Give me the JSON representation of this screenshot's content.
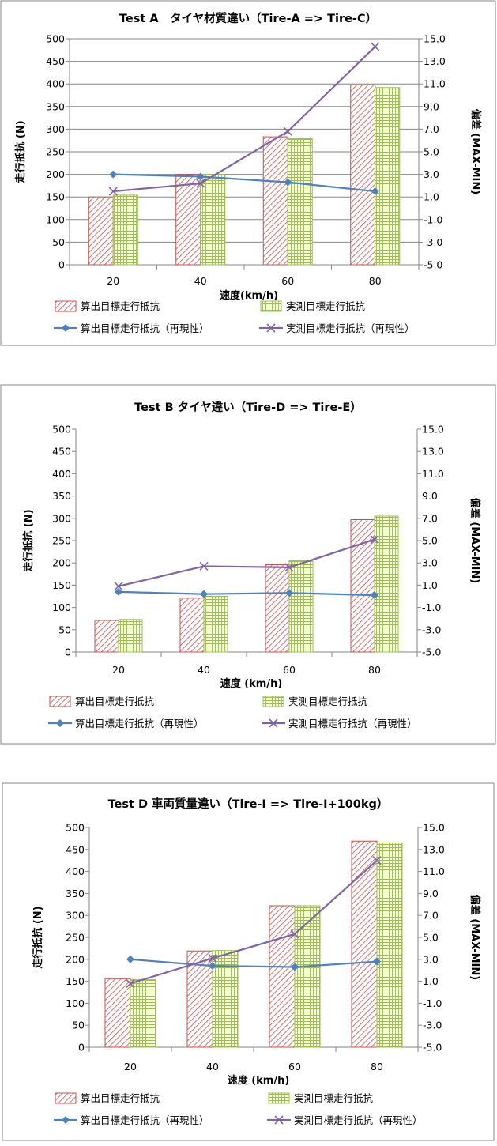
{
  "colors": {
    "bar1_stroke": "#c0504d",
    "bar1_hatch": "#c0504d",
    "bar2_stroke": "#9bbb59",
    "bar2_grid": "#9bbb59",
    "line1": "#4f81bd",
    "line2": "#8064a2",
    "gridline": "#868686"
  },
  "chart_data": [
    {
      "type": "bar",
      "title": "Test A　タイヤ材質違い（Tire-A => Tire-C）",
      "xlabel": "速度(km/h)",
      "ylabel": "走行抵抗 (N)",
      "y2label": "偏差 (MAX-MIN)",
      "categories": [
        "20",
        "40",
        "60",
        "80"
      ],
      "ylim": [
        0,
        500
      ],
      "y2lim": [
        -5.0,
        15.0
      ],
      "yticks": [
        "0",
        "50",
        "100",
        "150",
        "200",
        "250",
        "300",
        "350",
        "400",
        "450",
        "500"
      ],
      "y2ticks": [
        "-5.0",
        "-3.0",
        "-1.0",
        "1.0",
        "3.0",
        "5.0",
        "7.0",
        "9.0",
        "11.0",
        "13.0",
        "15.0"
      ],
      "grid": true,
      "legend_position": "bottom",
      "series": [
        {
          "name": "算出目標走行抵抗",
          "type": "bar",
          "axis": "left",
          "values": [
            150,
            200,
            283,
            398
          ]
        },
        {
          "name": "実測目標走行抵抗",
          "type": "bar",
          "axis": "left",
          "values": [
            154,
            200,
            279,
            392
          ]
        },
        {
          "name": "算出目標走行抵抗（再現性）",
          "type": "line",
          "axis": "right",
          "marker": "diamond",
          "values": [
            3.0,
            2.8,
            2.3,
            1.5
          ]
        },
        {
          "name": "実測目標走行抵抗（再現性）",
          "type": "line",
          "axis": "right",
          "marker": "x",
          "values": [
            1.5,
            2.2,
            6.8,
            14.3
          ]
        }
      ]
    },
    {
      "type": "bar",
      "title": "Test B タイヤ違い（Tire-D => Tire-E）",
      "xlabel": "速度 (km/h)",
      "ylabel": "走行抵抗 (N)",
      "y2label": "偏差 (MAX-MIN)",
      "categories": [
        "20",
        "40",
        "60",
        "80"
      ],
      "ylim": [
        0,
        500
      ],
      "y2lim": [
        -5.0,
        15.0
      ],
      "yticks": [
        "0",
        "50",
        "100",
        "150",
        "200",
        "250",
        "300",
        "350",
        "400",
        "450",
        "500"
      ],
      "y2ticks": [
        "-5.0",
        "-3.0",
        "-1.0",
        "1.0",
        "3.0",
        "5.0",
        "7.0",
        "9.0",
        "11.0",
        "13.0",
        "15.0"
      ],
      "grid": false,
      "legend_position": "bottom",
      "series": [
        {
          "name": "算出目標走行抵抗",
          "type": "bar",
          "axis": "left",
          "values": [
            71,
            121,
            196,
            297
          ]
        },
        {
          "name": "実測目標走行抵抗",
          "type": "bar",
          "axis": "left",
          "values": [
            73,
            125,
            205,
            305
          ]
        },
        {
          "name": "算出目標走行抵抗（再現性）",
          "type": "line",
          "axis": "right",
          "marker": "diamond",
          "values": [
            0.4,
            0.2,
            0.3,
            0.1
          ]
        },
        {
          "name": "実測目標走行抵抗（再現性）",
          "type": "line",
          "axis": "right",
          "marker": "x",
          "values": [
            0.9,
            2.7,
            2.6,
            5.1
          ]
        }
      ]
    },
    {
      "type": "bar",
      "title": "Test D 車両質量違い（Tire-I => Tire-I+100kg）",
      "xlabel": "速度 (km/h)",
      "ylabel": "走行抵抗 (N)",
      "y2label": "偏差 (MAX-MIN)",
      "categories": [
        "20",
        "40",
        "60",
        "80"
      ],
      "ylim": [
        0,
        500
      ],
      "y2lim": [
        -5.0,
        15.0
      ],
      "yticks": [
        "0",
        "50",
        "100",
        "150",
        "200",
        "250",
        "300",
        "350",
        "400",
        "450",
        "500"
      ],
      "y2ticks": [
        "-5.0",
        "-3.0",
        "-1.0",
        "1.0",
        "3.0",
        "5.0",
        "7.0",
        "9.0",
        "11.0",
        "13.0",
        "15.0"
      ],
      "grid": false,
      "legend_position": "bottom",
      "series": [
        {
          "name": "算出目標走行抵抗",
          "type": "bar",
          "axis": "left",
          "values": [
            156,
            219,
            322,
            469
          ]
        },
        {
          "name": "実測目標走行抵抗",
          "type": "bar",
          "axis": "left",
          "values": [
            154,
            220,
            322,
            465
          ]
        },
        {
          "name": "算出目標走行抵抗（再現性）",
          "type": "line",
          "axis": "right",
          "marker": "diamond",
          "values": [
            3.0,
            2.4,
            2.3,
            2.8
          ]
        },
        {
          "name": "実測目標走行抵抗（再現性）",
          "type": "line",
          "axis": "right",
          "marker": "x",
          "values": [
            0.8,
            3.1,
            5.3,
            12.0
          ]
        }
      ]
    }
  ]
}
